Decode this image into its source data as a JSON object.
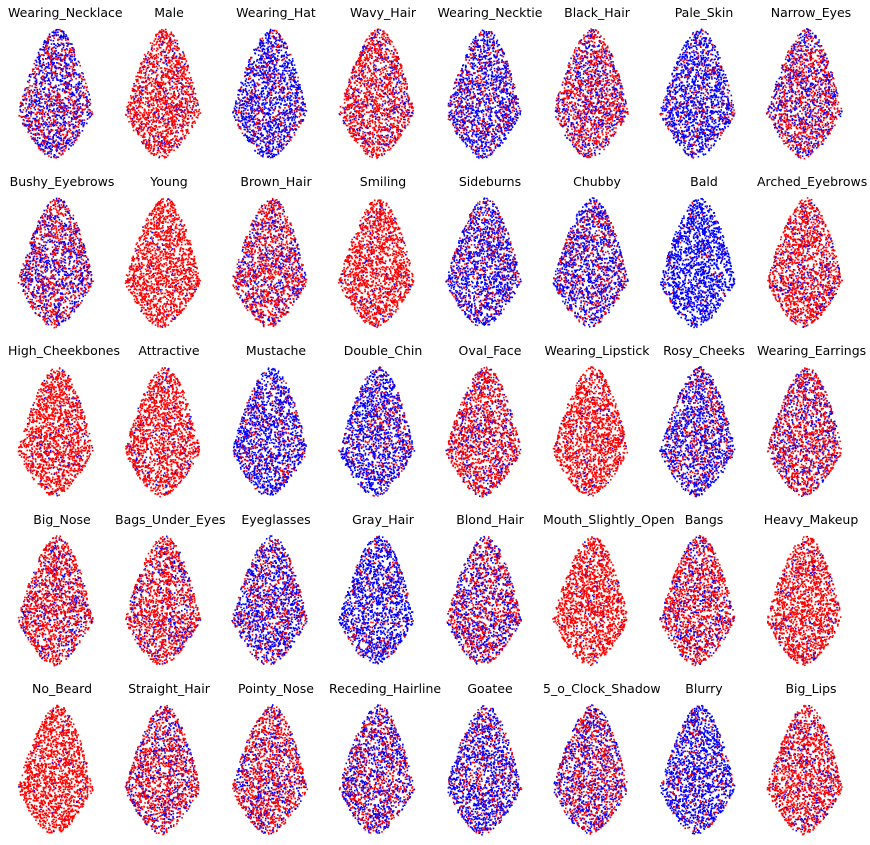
{
  "chart_data": {
    "type": "scatter",
    "description_colors": {
      "positive": "#ff0000",
      "negative": "#0000ff"
    },
    "grid": false,
    "axes_visible": false,
    "rows": 5,
    "cols": 8,
    "panels": [
      {
        "title": "Wearing_Necklace",
        "positive_fraction": 0.45
      },
      {
        "title": "Male",
        "positive_fraction": 0.88
      },
      {
        "title": "Wearing_Hat",
        "positive_fraction": 0.25
      },
      {
        "title": "Wavy_Hair",
        "positive_fraction": 0.8
      },
      {
        "title": "Wearing_Necktie",
        "positive_fraction": 0.3
      },
      {
        "title": "Black_Hair",
        "positive_fraction": 0.65
      },
      {
        "title": "Pale_Skin",
        "positive_fraction": 0.2
      },
      {
        "title": "Narrow_Eyes",
        "positive_fraction": 0.6
      },
      {
        "title": "Bushy_Eyebrows",
        "positive_fraction": 0.55
      },
      {
        "title": "Young",
        "positive_fraction": 0.95
      },
      {
        "title": "Brown_Hair",
        "positive_fraction": 0.7
      },
      {
        "title": "Smiling",
        "positive_fraction": 0.93
      },
      {
        "title": "Sideburns",
        "positive_fraction": 0.3
      },
      {
        "title": "Chubby",
        "positive_fraction": 0.35
      },
      {
        "title": "Bald",
        "positive_fraction": 0.08
      },
      {
        "title": "Arched_Eyebrows",
        "positive_fraction": 0.82
      },
      {
        "title": "High_Cheekbones",
        "positive_fraction": 0.93
      },
      {
        "title": "Attractive",
        "positive_fraction": 0.9
      },
      {
        "title": "Mustache",
        "positive_fraction": 0.25
      },
      {
        "title": "Double_Chin",
        "positive_fraction": 0.25
      },
      {
        "title": "Oval_Face",
        "positive_fraction": 0.75
      },
      {
        "title": "Wearing_Lipstick",
        "positive_fraction": 0.93
      },
      {
        "title": "Rosy_Cheeks",
        "positive_fraction": 0.3
      },
      {
        "title": "Wearing_Earrings",
        "positive_fraction": 0.7
      },
      {
        "title": "Big_Nose",
        "positive_fraction": 0.8
      },
      {
        "title": "Bags_Under_Eyes",
        "positive_fraction": 0.78
      },
      {
        "title": "Eyeglasses",
        "positive_fraction": 0.35
      },
      {
        "title": "Gray_Hair",
        "positive_fraction": 0.2
      },
      {
        "title": "Blond_Hair",
        "positive_fraction": 0.55
      },
      {
        "title": "Mouth_Slightly_Open",
        "positive_fraction": 0.95
      },
      {
        "title": "Bangs",
        "positive_fraction": 0.72
      },
      {
        "title": "Heavy_Makeup",
        "positive_fraction": 0.9
      },
      {
        "title": "No_Beard",
        "positive_fraction": 0.97
      },
      {
        "title": "Straight_Hair",
        "positive_fraction": 0.68
      },
      {
        "title": "Pointy_Nose",
        "positive_fraction": 0.72
      },
      {
        "title": "Receding_Hairline",
        "positive_fraction": 0.45
      },
      {
        "title": "Goatee",
        "positive_fraction": 0.3
      },
      {
        "title": "5_o_Clock_Shadow",
        "positive_fraction": 0.55
      },
      {
        "title": "Blurry",
        "positive_fraction": 0.2
      },
      {
        "title": "Big_Lips",
        "positive_fraction": 0.8
      }
    ]
  }
}
